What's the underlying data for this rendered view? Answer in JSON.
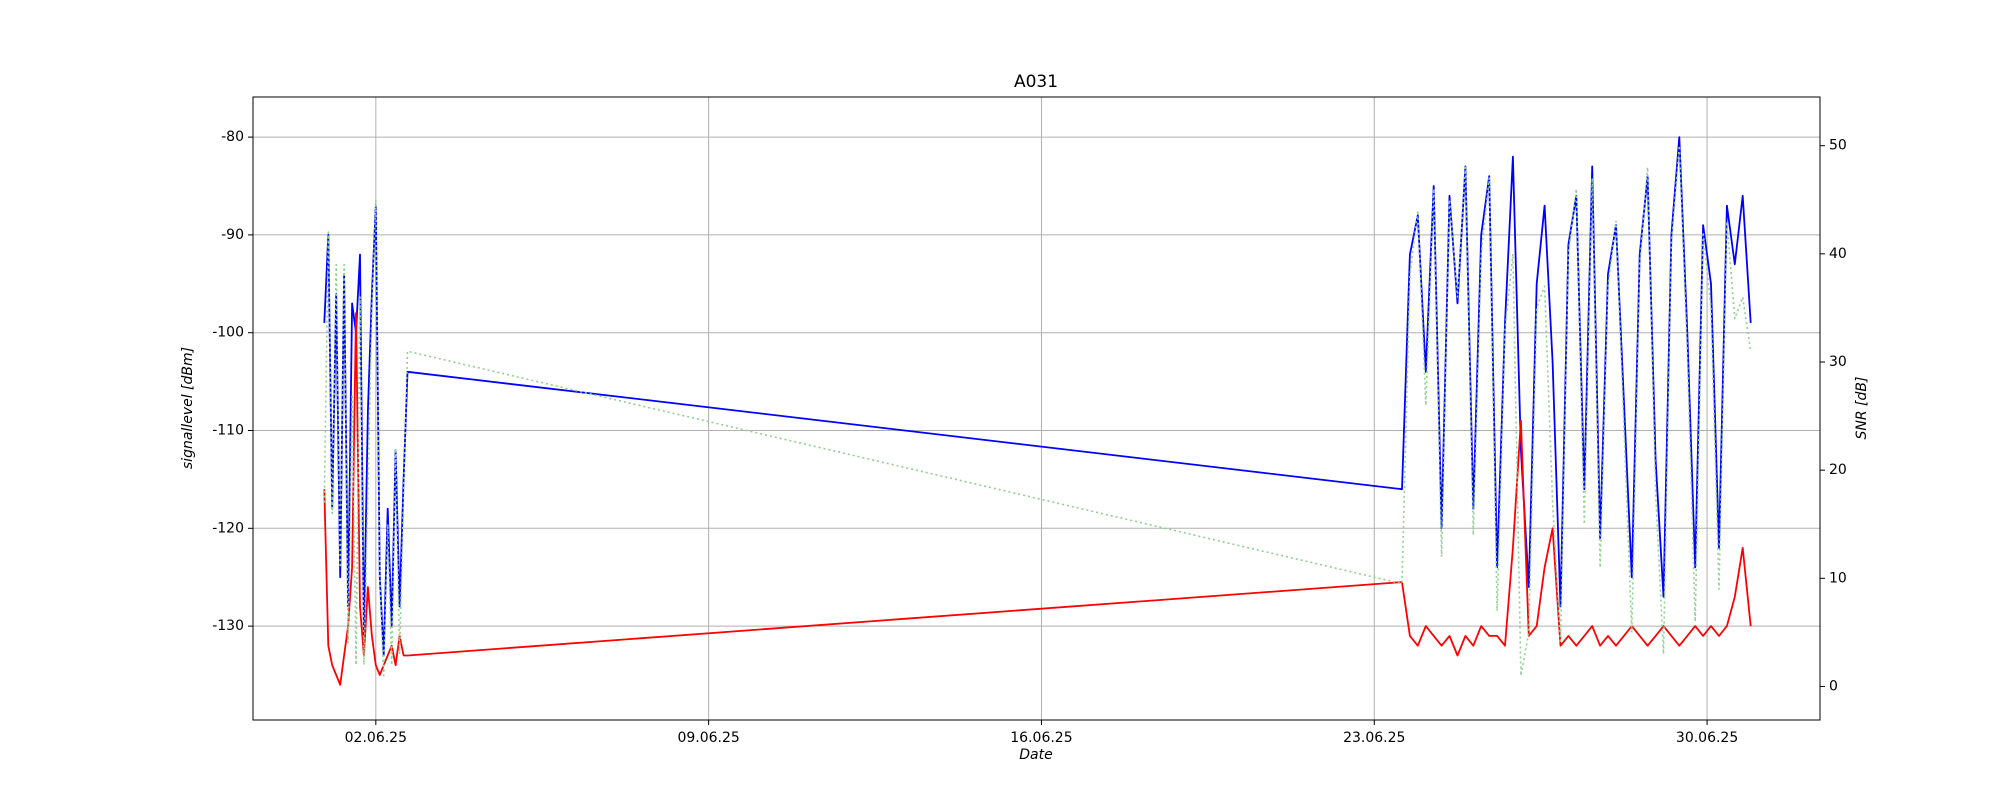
{
  "chart_data": {
    "type": "line",
    "title": "A031",
    "xlabel": "Date",
    "ylabel": "signallevel [dBm]",
    "y2label": "SNR [dB]",
    "x": [
      "2025-05-31T22:00",
      "2025-06-01T00:00",
      "2025-06-01T02:00",
      "2025-06-01T04:00",
      "2025-06-01T06:00",
      "2025-06-01T08:00",
      "2025-06-01T10:00",
      "2025-06-01T12:00",
      "2025-06-01T14:00",
      "2025-06-01T16:00",
      "2025-06-01T18:00",
      "2025-06-01T20:00",
      "2025-06-01T22:00",
      "2025-06-02T00:00",
      "2025-06-02T02:00",
      "2025-06-02T04:00",
      "2025-06-02T06:00",
      "2025-06-02T08:00",
      "2025-06-02T10:00",
      "2025-06-02T12:00",
      "2025-06-02T14:00",
      "2025-06-02T16:00",
      "2025-06-23T14:00",
      "2025-06-23T18:00",
      "2025-06-23T22:00",
      "2025-06-24T02:00",
      "2025-06-24T06:00",
      "2025-06-24T10:00",
      "2025-06-24T14:00",
      "2025-06-24T18:00",
      "2025-06-24T22:00",
      "2025-06-25T02:00",
      "2025-06-25T06:00",
      "2025-06-25T10:00",
      "2025-06-25T14:00",
      "2025-06-25T18:00",
      "2025-06-25T22:00",
      "2025-06-26T02:00",
      "2025-06-26T06:00",
      "2025-06-26T10:00",
      "2025-06-26T14:00",
      "2025-06-26T18:00",
      "2025-06-26T22:00",
      "2025-06-27T02:00",
      "2025-06-27T06:00",
      "2025-06-27T10:00",
      "2025-06-27T14:00",
      "2025-06-27T18:00",
      "2025-06-27T22:00",
      "2025-06-28T02:00",
      "2025-06-28T06:00",
      "2025-06-28T10:00",
      "2025-06-28T14:00",
      "2025-06-28T18:00",
      "2025-06-28T22:00",
      "2025-06-29T02:00",
      "2025-06-29T06:00",
      "2025-06-29T10:00",
      "2025-06-29T14:00",
      "2025-06-29T18:00",
      "2025-06-29T22:00",
      "2025-06-30T02:00",
      "2025-06-30T06:00",
      "2025-06-30T10:00",
      "2025-06-30T14:00",
      "2025-06-30T18:00",
      "2025-06-30T22:00"
    ],
    "series": [
      {
        "color": "#0000ff",
        "linestyle": "solid",
        "values": [
          -99,
          -90,
          -118,
          -96,
          -125,
          -94,
          -128,
          -97,
          -100,
          -92,
          -131,
          -108,
          -96,
          -87,
          -125,
          -133,
          -118,
          -130,
          -112,
          -128,
          -115,
          -104,
          -116,
          -92,
          -88,
          -104,
          -85,
          -120,
          -86,
          -97,
          -83,
          -118,
          -90,
          -84,
          -124,
          -99,
          -82,
          -112,
          -126,
          -95,
          -87,
          -103,
          -128,
          -91,
          -86,
          -116,
          -83,
          -121,
          -94,
          -89,
          -107,
          -125,
          -92,
          -84,
          -113,
          -127,
          -90,
          -80,
          -100,
          -124,
          -89,
          -95,
          -122,
          -87,
          -93,
          -86,
          -99
        ]
      },
      {
        "color": "#ff0000",
        "linestyle": "solid",
        "values": [
          -116,
          -132,
          -134,
          -135,
          -136,
          -133,
          -130,
          -124,
          -98,
          -128,
          -133,
          -126,
          -131,
          -134,
          -135,
          -134,
          -133,
          -132,
          -134,
          -131,
          -133,
          -133,
          -125.5,
          -131,
          -132,
          -130,
          -131,
          -132,
          -131,
          -133,
          -131,
          -132,
          -130,
          -131,
          -131,
          -132,
          -122,
          -109,
          -131,
          -130,
          -124,
          -120,
          -132,
          -131,
          -132,
          -131,
          -130,
          -132,
          -131,
          -132,
          -131,
          -130,
          -131,
          -132,
          -131,
          -130,
          -131,
          -132,
          -131,
          -130,
          -131,
          -130,
          -131,
          -130,
          -127,
          -122,
          -130
        ]
      },
      {
        "color": "#8fd08f",
        "linestyle": "dotted",
        "axis": "y2",
        "values": [
          17,
          42,
          16,
          39,
          11,
          39,
          4,
          27,
          2,
          36,
          2,
          18,
          35,
          45,
          10,
          1,
          15,
          2,
          22,
          3,
          18,
          31,
          9.5,
          38,
          44,
          26,
          46,
          12,
          45,
          36,
          48,
          14,
          40,
          47,
          7,
          33,
          40,
          1,
          5,
          35,
          37,
          17,
          4,
          40,
          46,
          15,
          47,
          11,
          37,
          43,
          24,
          5,
          39,
          48,
          18,
          3,
          41,
          50,
          31,
          6,
          42,
          35,
          9,
          43,
          34,
          36,
          31
        ]
      }
    ],
    "xlim": [
      "2025-05-30T10:00",
      "2025-07-02T09:00"
    ],
    "xticks": [
      {
        "value": "2025-06-02T00:00",
        "label": "02.06.25"
      },
      {
        "value": "2025-06-09T00:00",
        "label": "09.06.25"
      },
      {
        "value": "2025-06-16T00:00",
        "label": "16.06.25"
      },
      {
        "value": "2025-06-23T00:00",
        "label": "23.06.25"
      },
      {
        "value": "2025-06-30T00:00",
        "label": "30.06.25"
      }
    ],
    "ylim": [
      -139.6,
      -75.9
    ],
    "yticks": [
      -130,
      -120,
      -110,
      -100,
      -90,
      -80
    ],
    "y2lim": [
      -3.1,
      54.5
    ],
    "y2ticks": [
      0,
      10,
      20,
      30,
      40,
      50
    ],
    "grid": true
  }
}
